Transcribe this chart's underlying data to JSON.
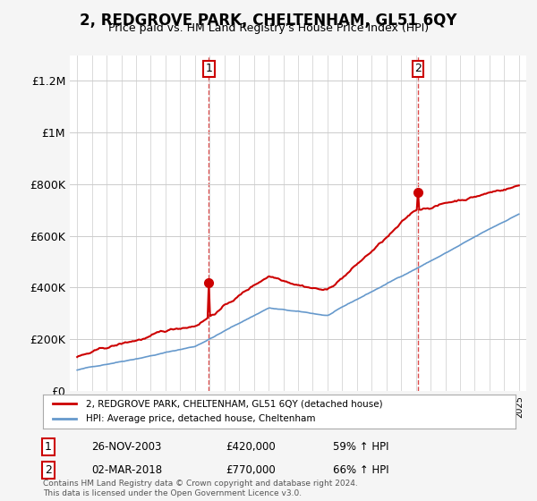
{
  "title": "2, REDGROVE PARK, CHELTENHAM, GL51 6QY",
  "subtitle": "Price paid vs. HM Land Registry's House Price Index (HPI)",
  "ylim": [
    0,
    1300000
  ],
  "yticks": [
    0,
    200000,
    400000,
    600000,
    800000,
    1000000,
    1200000
  ],
  "ytick_labels": [
    "£0",
    "£200K",
    "£400K",
    "£600K",
    "£800K",
    "£1M",
    "£1.2M"
  ],
  "line1_color": "#cc0000",
  "line2_color": "#6699cc",
  "transaction1_date": "26-NOV-2003",
  "transaction1_price": 420000,
  "transaction1_label": "59% ↑ HPI",
  "transaction2_date": "02-MAR-2018",
  "transaction2_price": 770000,
  "transaction2_label": "66% ↑ HPI",
  "legend1_label": "2, REDGROVE PARK, CHELTENHAM, GL51 6QY (detached house)",
  "legend2_label": "HPI: Average price, detached house, Cheltenham",
  "footnote": "Contains HM Land Registry data © Crown copyright and database right 2024.\nThis data is licensed under the Open Government Licence v3.0.",
  "background_color": "#f5f5f5",
  "plot_bg_color": "#ffffff"
}
